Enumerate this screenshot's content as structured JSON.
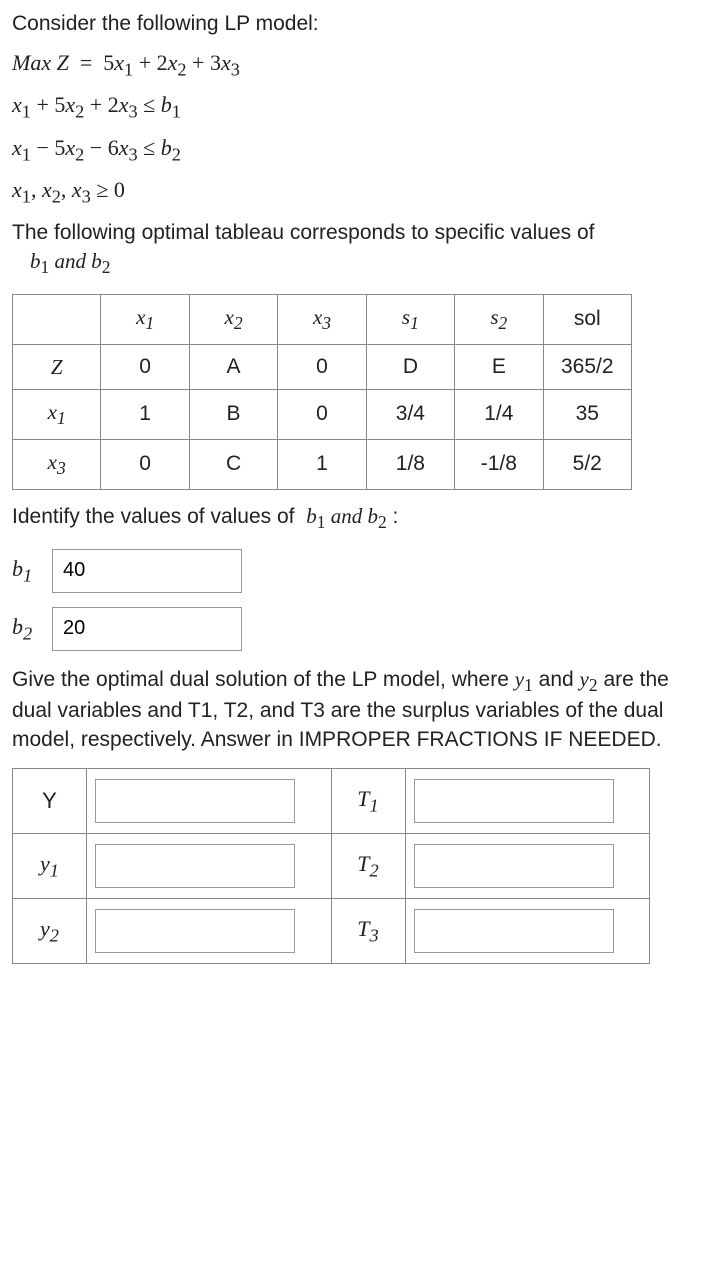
{
  "intro": "Consider the following LP model:",
  "eq1_lhs": "Max Z",
  "eq1_rhs_html": "5<i>x</i><sub>1</sub> + 2<i>x</i><sub>2</sub> + 3<i>x</i><sub>3</sub>",
  "eq2_html": "<i>x</i><sub>1</sub> + 5<i>x</i><sub>2</sub> + 2<i>x</i><sub>3</sub> ≤ <i>b</i><sub>1</sub>",
  "eq3_html": "<i>x</i><sub>1</sub> − 5<i>x</i><sub>2</sub> − 6<i>x</i><sub>3</sub> ≤ <i>b</i><sub>2</sub>",
  "eq4_html": "<i>x</i><sub>1</sub>, <i>x</i><sub>2</sub>, <i>x</i><sub>3</sub> ≥ 0",
  "para1_text": "The following optimal tableau corresponds to specific values of",
  "para1_vars_html": "<i>b</i><sub>1</sub> <i>and</i> <i>b</i><sub>2</sub>",
  "tableau": {
    "headers": [
      "",
      "x1",
      "x2",
      "x3",
      "s1",
      "s2",
      "sol"
    ],
    "headers_html": [
      "",
      "<i>x</i><sub>1</sub>",
      "<i>x</i><sub>2</sub>",
      "<i>x</i><sub>3</sub>",
      "<i>s</i><sub>1</sub>",
      "<i>s</i><sub>2</sub>",
      "sol"
    ],
    "rows": [
      {
        "var_html": "Z",
        "cells": [
          "0",
          "A",
          "0",
          "D",
          "E",
          "365/2"
        ]
      },
      {
        "var_html": "<i>x</i><sub>1</sub>",
        "cells": [
          "1",
          "B",
          "0",
          "3/4",
          "1/4",
          "35"
        ]
      },
      {
        "var_html": "<i>x</i><sub>3</sub>",
        "cells": [
          "0",
          "C",
          "1",
          "1/8",
          "-1/8",
          "5/2"
        ]
      }
    ],
    "border_color": "#888888",
    "cell_fontsize": 21
  },
  "identify_text_html": "Identify the values of values of &nbsp;<span class='math'><i>b</i><sub>1</sub> <i>and</i> <i>b</i><sub>2</sub></span> :",
  "b1_label_html": "<i>b</i><sub>1</sub>",
  "b1_value": "40",
  "b2_label_html": "<i>b</i><sub>2</sub>",
  "b2_value": "20",
  "dual_para_html": "Give the optimal dual solution of the LP model, where <span class='math'><i>y</i><sub>1</sub></span> and <span class='math'><i>y</i><sub>2</sub></span> are the dual variables and T1, T2, and T3 are the surplus variables of the dual&nbsp; model, respectively. Answer in IMPROPER FRACTIONS IF NEEDED.",
  "ans_rows": [
    {
      "left_html": "Y",
      "right_html": "<i>T</i><sub>1</sub>"
    },
    {
      "left_html": "<i>y</i><sub>1</sub>",
      "right_html": "<i>T</i><sub>2</sub>"
    },
    {
      "left_html": "<i>y</i><sub>2</sub>",
      "right_html": "<i>T</i><sub>3</sub>"
    }
  ],
  "colors": {
    "text": "#222222",
    "border": "#888888",
    "input_border": "#999999",
    "background": "#ffffff"
  }
}
